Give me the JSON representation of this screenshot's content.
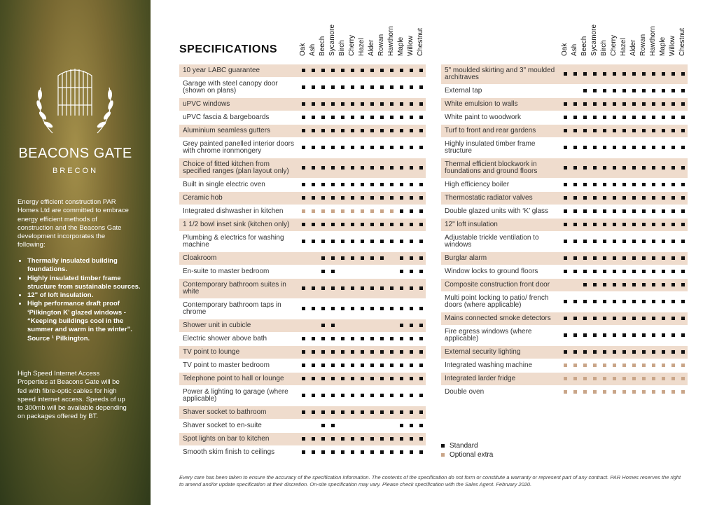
{
  "sidebar": {
    "brand": "BEACONS GATE",
    "location": "BRECON",
    "intro": "Energy efficient construction PAR Homes Ltd are committed to embrace energy efficient methods of construction and the Beacons Gate development incorporates the following:",
    "bullets": [
      "Thermally insulated building foundations.",
      "Highly insulated timber frame structure from sustainable sources.",
      "12\" of loft insulation.",
      "High performance draft proof ‘Pilkington K’ glazed windows - “Keeping buildings cool in the summer and warm in the winter”. Source ¹ Pilkington."
    ],
    "internet": "High Speed Internet Access Properties at Beacons Gate will be fed with fibre-optic cables for high speed internet access. Speeds of up to 300mb will be available depending on packages offered by BT."
  },
  "header": {
    "title": "SPECIFICATIONS"
  },
  "columns": [
    "Oak",
    "Ash",
    "Beech",
    "Sycamore",
    "Birch",
    "Cherry",
    "Hazel",
    "Alder",
    "Rowan",
    "Hawthorn",
    "Maple",
    "Willow",
    "Chestnut"
  ],
  "left_rows": [
    {
      "label": "10 year LABC guarantee",
      "cells": [
        "s",
        "s",
        "s",
        "s",
        "s",
        "s",
        "s",
        "s",
        "s",
        "s",
        "s",
        "s",
        "s"
      ]
    },
    {
      "label": "Garage with steel canopy door (shown on plans)",
      "cells": [
        "s",
        "s",
        "s",
        "s",
        "s",
        "s",
        "s",
        "s",
        "s",
        "s",
        "s",
        "s",
        "s"
      ]
    },
    {
      "label": "uPVC windows",
      "cells": [
        "s",
        "s",
        "s",
        "s",
        "s",
        "s",
        "s",
        "s",
        "s",
        "s",
        "s",
        "s",
        "s"
      ]
    },
    {
      "label": "uPVC fascia & bargeboards",
      "cells": [
        "s",
        "s",
        "s",
        "s",
        "s",
        "s",
        "s",
        "s",
        "s",
        "s",
        "s",
        "s",
        "s"
      ]
    },
    {
      "label": "Aluminium seamless gutters",
      "cells": [
        "s",
        "s",
        "s",
        "s",
        "s",
        "s",
        "s",
        "s",
        "s",
        "s",
        "s",
        "s",
        "s"
      ]
    },
    {
      "label": "Grey painted panelled interior doors with chrome ironmongery",
      "cells": [
        "s",
        "s",
        "s",
        "s",
        "s",
        "s",
        "s",
        "s",
        "s",
        "s",
        "s",
        "s",
        "s"
      ]
    },
    {
      "label": "Choice of fitted kitchen from specified ranges (plan layout only)",
      "cells": [
        "s",
        "s",
        "s",
        "s",
        "s",
        "s",
        "s",
        "s",
        "s",
        "s",
        "s",
        "s",
        "s"
      ]
    },
    {
      "label": "Built in single electric oven",
      "cells": [
        "s",
        "s",
        "s",
        "s",
        "s",
        "s",
        "s",
        "s",
        "s",
        "s",
        "s",
        "s",
        "s"
      ]
    },
    {
      "label": "Ceramic hob",
      "cells": [
        "s",
        "s",
        "s",
        "s",
        "s",
        "s",
        "s",
        "s",
        "s",
        "s",
        "s",
        "s",
        "s"
      ]
    },
    {
      "label": "Integrated dishwasher in kitchen",
      "cells": [
        "o",
        "o",
        "o",
        "o",
        "o",
        "o",
        "o",
        "o",
        "o",
        "o",
        "s",
        "s",
        "s"
      ]
    },
    {
      "label": "1 1/2 bowl inset sink (kitchen only)",
      "cells": [
        "s",
        "s",
        "s",
        "s",
        "s",
        "s",
        "s",
        "s",
        "s",
        "s",
        "s",
        "s",
        "s"
      ]
    },
    {
      "label": "Plumbing & electrics for washing machine",
      "cells": [
        "s",
        "s",
        "s",
        "s",
        "s",
        "s",
        "s",
        "s",
        "s",
        "s",
        "s",
        "s",
        "s"
      ]
    },
    {
      "label": "Cloakroom",
      "cells": [
        null,
        null,
        "s",
        "s",
        "s",
        "s",
        "s",
        "s",
        "s",
        null,
        "s",
        "s",
        "s"
      ]
    },
    {
      "label": "En-suite to master bedroom",
      "cells": [
        null,
        null,
        "s",
        "s",
        null,
        null,
        null,
        null,
        null,
        null,
        "s",
        "s",
        "s"
      ]
    },
    {
      "label": "Contemporary bathroom suites in white",
      "cells": [
        "s",
        "s",
        "s",
        "s",
        "s",
        "s",
        "s",
        "s",
        "s",
        "s",
        "s",
        "s",
        "s"
      ]
    },
    {
      "label": "Contemporary bathroom taps in chrome",
      "cells": [
        "s",
        "s",
        "s",
        "s",
        "s",
        "s",
        "s",
        "s",
        "s",
        "s",
        "s",
        "s",
        "s"
      ]
    },
    {
      "label": "Shower unit in cubicle",
      "cells": [
        null,
        null,
        "s",
        "s",
        null,
        null,
        null,
        null,
        null,
        null,
        "s",
        "s",
        "s"
      ]
    },
    {
      "label": "Electric shower above bath",
      "cells": [
        "s",
        "s",
        "s",
        "s",
        "s",
        "s",
        "s",
        "s",
        "s",
        "s",
        "s",
        "s",
        "s"
      ]
    },
    {
      "label": "TV point to lounge",
      "cells": [
        "s",
        "s",
        "s",
        "s",
        "s",
        "s",
        "s",
        "s",
        "s",
        "s",
        "s",
        "s",
        "s"
      ]
    },
    {
      "label": "TV point to master bedroom",
      "cells": [
        "s",
        "s",
        "s",
        "s",
        "s",
        "s",
        "s",
        "s",
        "s",
        "s",
        "s",
        "s",
        "s"
      ]
    },
    {
      "label": "Telephone point to hall or lounge",
      "cells": [
        "s",
        "s",
        "s",
        "s",
        "s",
        "s",
        "s",
        "s",
        "s",
        "s",
        "s",
        "s",
        "s"
      ]
    },
    {
      "label": "Power & lighting to garage (where applicable)",
      "cells": [
        "s",
        "s",
        "s",
        "s",
        "s",
        "s",
        "s",
        "s",
        "s",
        "s",
        "s",
        "s",
        "s"
      ]
    },
    {
      "label": "Shaver socket to bathroom",
      "cells": [
        "s",
        "s",
        "s",
        "s",
        "s",
        "s",
        "s",
        "s",
        "s",
        "s",
        "s",
        "s",
        "s"
      ]
    },
    {
      "label": "Shaver socket to en-suite",
      "cells": [
        null,
        null,
        "s",
        "s",
        null,
        null,
        null,
        null,
        null,
        null,
        "s",
        "s",
        "s"
      ]
    },
    {
      "label": "Spot lights on bar to kitchen",
      "cells": [
        "s",
        "s",
        "s",
        "s",
        "s",
        "s",
        "s",
        "s",
        "s",
        "s",
        "s",
        "s",
        "s"
      ]
    },
    {
      "label": "Smooth skim finish to ceilings",
      "cells": [
        "s",
        "s",
        "s",
        "s",
        "s",
        "s",
        "s",
        "s",
        "s",
        "s",
        "s",
        "s",
        "s"
      ]
    }
  ],
  "right_rows": [
    {
      "label": "5\" moulded skirting and 3\" moulded architraves",
      "cells": [
        "s",
        "s",
        "s",
        "s",
        "s",
        "s",
        "s",
        "s",
        "s",
        "s",
        "s",
        "s",
        "s"
      ]
    },
    {
      "label": "External tap",
      "cells": [
        null,
        null,
        "s",
        "s",
        "s",
        "s",
        "s",
        "s",
        "s",
        "s",
        "s",
        "s",
        "s"
      ]
    },
    {
      "label": "White emulsion to walls",
      "cells": [
        "s",
        "s",
        "s",
        "s",
        "s",
        "s",
        "s",
        "s",
        "s",
        "s",
        "s",
        "s",
        "s"
      ]
    },
    {
      "label": "White paint to woodwork",
      "cells": [
        "s",
        "s",
        "s",
        "s",
        "s",
        "s",
        "s",
        "s",
        "s",
        "s",
        "s",
        "s",
        "s"
      ]
    },
    {
      "label": "Turf to front and rear gardens",
      "cells": [
        "s",
        "s",
        "s",
        "s",
        "s",
        "s",
        "s",
        "s",
        "s",
        "s",
        "s",
        "s",
        "s"
      ]
    },
    {
      "label": "Highly insulated timber frame structure",
      "cells": [
        "s",
        "s",
        "s",
        "s",
        "s",
        "s",
        "s",
        "s",
        "s",
        "s",
        "s",
        "s",
        "s"
      ]
    },
    {
      "label": "Thermal efficient blockwork in foundations and ground floors",
      "cells": [
        "s",
        "s",
        "s",
        "s",
        "s",
        "s",
        "s",
        "s",
        "s",
        "s",
        "s",
        "s",
        "s"
      ]
    },
    {
      "label": "High efficiency boiler",
      "cells": [
        "s",
        "s",
        "s",
        "s",
        "s",
        "s",
        "s",
        "s",
        "s",
        "s",
        "s",
        "s",
        "s"
      ]
    },
    {
      "label": "Thermostatic radiator valves",
      "cells": [
        "s",
        "s",
        "s",
        "s",
        "s",
        "s",
        "s",
        "s",
        "s",
        "s",
        "s",
        "s",
        "s"
      ]
    },
    {
      "label": "Double glazed units with ‘K’ glass",
      "cells": [
        "s",
        "s",
        "s",
        "s",
        "s",
        "s",
        "s",
        "s",
        "s",
        "s",
        "s",
        "s",
        "s"
      ]
    },
    {
      "label": "12\" loft insulation",
      "cells": [
        "s",
        "s",
        "s",
        "s",
        "s",
        "s",
        "s",
        "s",
        "s",
        "s",
        "s",
        "s",
        "s"
      ]
    },
    {
      "label": "Adjustable trickle ventilation to windows",
      "cells": [
        "s",
        "s",
        "s",
        "s",
        "s",
        "s",
        "s",
        "s",
        "s",
        "s",
        "s",
        "s",
        "s"
      ]
    },
    {
      "label": "Burglar alarm",
      "cells": [
        "s",
        "s",
        "s",
        "s",
        "s",
        "s",
        "s",
        "s",
        "s",
        "s",
        "s",
        "s",
        "s"
      ]
    },
    {
      "label": "Window locks to ground floors",
      "cells": [
        "s",
        "s",
        "s",
        "s",
        "s",
        "s",
        "s",
        "s",
        "s",
        "s",
        "s",
        "s",
        "s"
      ]
    },
    {
      "label": "Composite construction front door",
      "cells": [
        null,
        null,
        "s",
        "s",
        "s",
        "s",
        "s",
        "s",
        "s",
        "s",
        "s",
        "s",
        "s"
      ]
    },
    {
      "label": "Multi point locking to patio/ french doors (where applicable)",
      "cells": [
        "s",
        "s",
        "s",
        "s",
        "s",
        "s",
        "s",
        "s",
        "s",
        "s",
        "s",
        "s",
        "s"
      ]
    },
    {
      "label": "Mains connected smoke detectors",
      "cells": [
        "s",
        "s",
        "s",
        "s",
        "s",
        "s",
        "s",
        "s",
        "s",
        "s",
        "s",
        "s",
        "s"
      ]
    },
    {
      "label": "Fire egress windows (where applicable)",
      "cells": [
        "s",
        "s",
        "s",
        "s",
        "s",
        "s",
        "s",
        "s",
        "s",
        "s",
        "s",
        "s",
        "s"
      ]
    },
    {
      "label": "External security lighting",
      "cells": [
        "s",
        "s",
        "s",
        "s",
        "s",
        "s",
        "s",
        "s",
        "s",
        "s",
        "s",
        "s",
        "s"
      ]
    },
    {
      "label": "Integrated washing machine",
      "cells": [
        "o",
        "o",
        "o",
        "o",
        "o",
        "o",
        "o",
        "o",
        "o",
        "o",
        "o",
        "o",
        "o"
      ]
    },
    {
      "label": "Integrated larder fridge",
      "cells": [
        "o",
        "o",
        "o",
        "o",
        "o",
        "o",
        "o",
        "o",
        "o",
        "o",
        "o",
        "o",
        "o"
      ]
    },
    {
      "label": "Double oven",
      "cells": [
        "o",
        "o",
        "o",
        "o",
        "o",
        "o",
        "o",
        "o",
        "o",
        "o",
        "o",
        "o",
        "o"
      ]
    }
  ],
  "legend": {
    "standard": "Standard",
    "optional": "Optional extra"
  },
  "footer": "Every care has been taken to ensure the accuracy of the specification information. The contents of the specification do not form or constitute a warranty or represent part of any contract. PAR Homes reserves the right to amend and/or update specification at their discretion. On-site specification may vary. Please check specification with the Sales Agent. February 2020."
}
